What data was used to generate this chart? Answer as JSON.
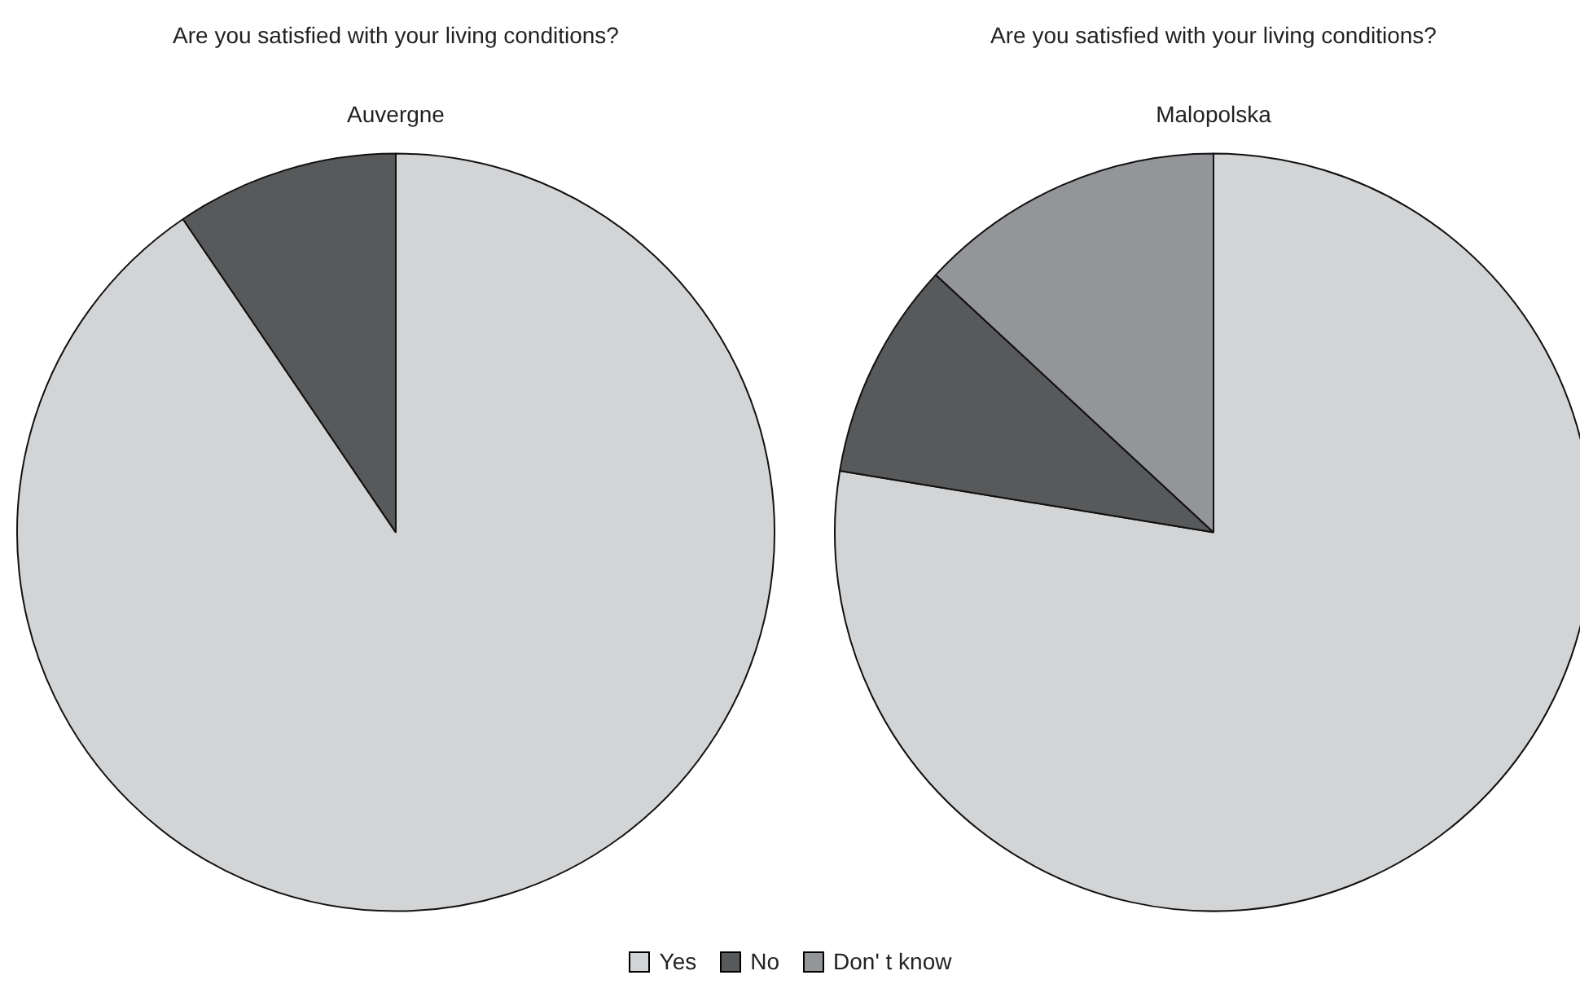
{
  "chart_data": [
    {
      "type": "pie",
      "title": "Are you satisfied with your living conditions?",
      "subtitle": "Auvergne",
      "categories": [
        null,
        null
      ],
      "values": [
        90.5,
        9.5
      ],
      "colors": [
        "#d3d4d6",
        "#58595b"
      ]
    },
    {
      "type": "pie",
      "title": "Are you satisfied with your living conditions?",
      "subtitle": "Malopolska",
      "categories": [
        "Yes",
        "No",
        "Don' t know"
      ],
      "values": [
        77.6,
        9.3,
        13.1
      ],
      "colors": [
        "#d3d4d6",
        "#58595b",
        "#939598"
      ],
      "legend": "bottom"
    }
  ]
}
